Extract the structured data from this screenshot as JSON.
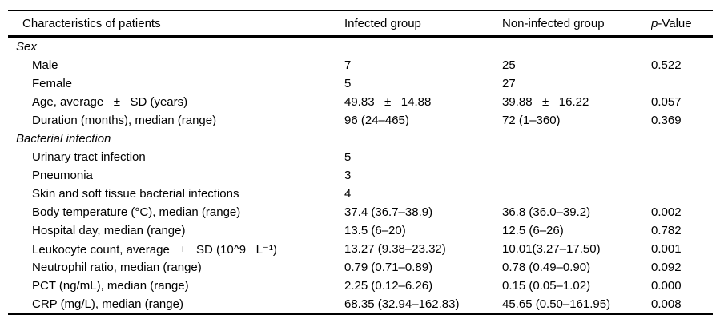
{
  "page_bg": "#ffffff",
  "text_color": "#000000",
  "border_color": "#000000",
  "table": {
    "headers": {
      "characteristics": "Characteristics of patients",
      "infected": "Infected group",
      "non_infected": "Non-infected group",
      "p_value": {
        "italic": "p",
        "rest": "-Value"
      }
    },
    "rows": [
      {
        "type": "section",
        "label": "Sex",
        "infected": "",
        "non_infected": "",
        "p": ""
      },
      {
        "type": "item",
        "label": "Male",
        "infected": "7",
        "non_infected": "25",
        "p": "0.522"
      },
      {
        "type": "item",
        "label": "Female",
        "infected": "5",
        "non_infected": "27",
        "p": ""
      },
      {
        "type": "item",
        "label": "Age, average   ±   SD (years)",
        "infected": "49.83   ±   14.88",
        "non_infected": "39.88   ±   16.22",
        "p": "0.057"
      },
      {
        "type": "item",
        "label": "Duration (months), median (range)",
        "infected": "96 (24–465)",
        "non_infected": "72 (1–360)",
        "p": "0.369"
      },
      {
        "type": "section",
        "label": "Bacterial infection",
        "infected": "",
        "non_infected": "",
        "p": ""
      },
      {
        "type": "item",
        "label": "Urinary tract infection",
        "infected": "5",
        "non_infected": "",
        "p": ""
      },
      {
        "type": "item",
        "label": "Pneumonia",
        "infected": "3",
        "non_infected": "",
        "p": ""
      },
      {
        "type": "item",
        "label": "Skin and soft tissue bacterial infections",
        "infected": "4",
        "non_infected": "",
        "p": ""
      },
      {
        "type": "item",
        "label": "Body temperature (°C), median (range)",
        "infected": "37.4 (36.7–38.9)",
        "non_infected": "36.8 (36.0–39.2)",
        "p": "0.002"
      },
      {
        "type": "item",
        "label": "Hospital day, median (range)",
        "infected": "13.5 (6–20)",
        "non_infected": "12.5 (6–26)",
        "p": "0.782"
      },
      {
        "type": "item",
        "label": "Leukocyte count, average   ±   SD (10^9   L⁻¹)",
        "infected": "13.27 (9.38–23.32)",
        "non_infected": "10.01(3.27–17.50)",
        "p": "0.001"
      },
      {
        "type": "item",
        "label": "Neutrophil ratio, median (range)",
        "infected": "0.79 (0.71–0.89)",
        "non_infected": "0.78 (0.49–0.90)",
        "p": "0.092"
      },
      {
        "type": "item",
        "label": "PCT (ng/mL), median (range)",
        "infected": "2.25 (0.12–6.26)",
        "non_infected": "0.15 (0.05–1.02)",
        "p": "0.000"
      },
      {
        "type": "item",
        "label": "CRP (mg/L), median (range)",
        "infected": "68.35 (32.94–162.83)",
        "non_infected": "45.65 (0.50–161.95)",
        "p": "0.008"
      }
    ]
  }
}
